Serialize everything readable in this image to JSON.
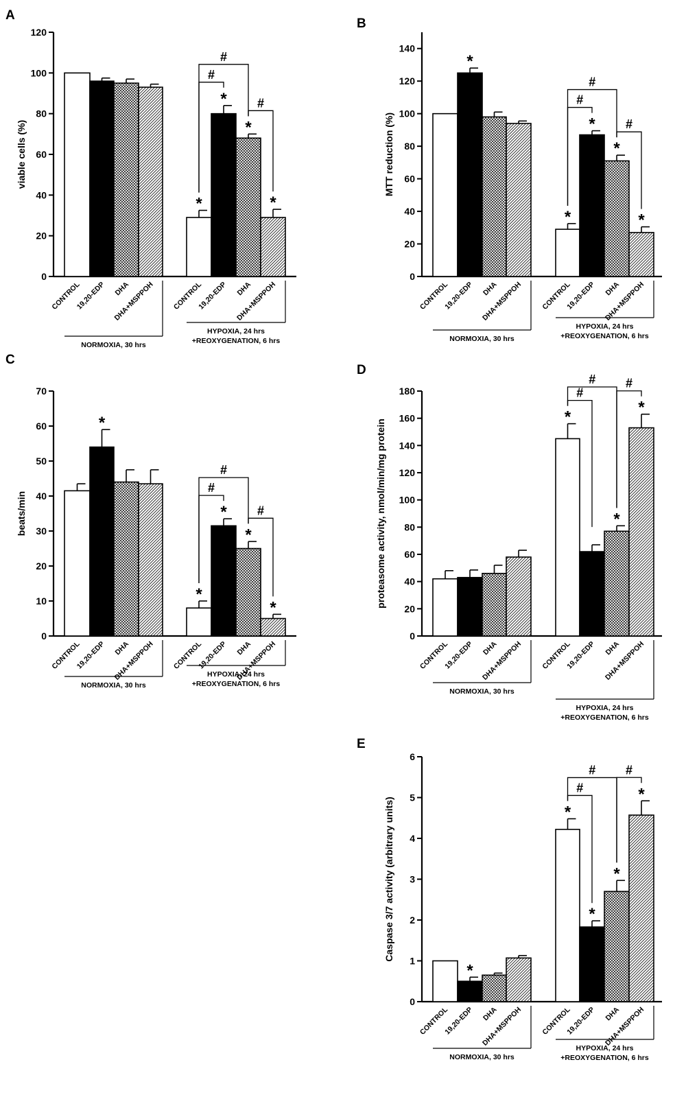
{
  "figure": {
    "fill_styles": [
      "open",
      "solid",
      "crosshatch",
      "diagonal"
    ],
    "colors": {
      "ink": "#000000",
      "open": "#ffffff",
      "solid": "#000000"
    }
  },
  "chart_data": [
    {
      "panel": "A",
      "type": "bar",
      "ylabel": "viable cells (%)",
      "ylim": [
        0,
        120
      ],
      "yticks": [
        0,
        20,
        40,
        60,
        80,
        100,
        120
      ],
      "categories": [
        "CONTROL",
        "19,20-EDP",
        "DHA",
        "DHA+MSPPOH"
      ],
      "groups": [
        "NORMOXIA, 30 hrs",
        "HYPOXIA, 24 hrs\n+REOXYGENATION, 6 hrs"
      ],
      "series": [
        {
          "name": "NORMOXIA, 30 hrs",
          "values": [
            100,
            96,
            95,
            93
          ],
          "errors": [
            0,
            1.5,
            2,
            1.5
          ]
        },
        {
          "name": "HYPOXIA, 24 hrs +REOXYGENATION, 6 hrs",
          "values": [
            29,
            80,
            68,
            29
          ],
          "errors": [
            3.5,
            4,
            2,
            4
          ]
        }
      ],
      "stars": [
        [
          false,
          false,
          false,
          false
        ],
        [
          true,
          true,
          true,
          true
        ]
      ],
      "brackets": [
        {
          "from": 0,
          "to": 2,
          "group": 1,
          "label": "#"
        },
        {
          "from": 0,
          "to": 1,
          "group": 1,
          "label": "#"
        },
        {
          "from": 2,
          "to": 3,
          "group": 1,
          "label": "#"
        }
      ]
    },
    {
      "panel": "B",
      "type": "bar",
      "ylabel": "MTT reduction (%)",
      "ylim": [
        0,
        150
      ],
      "yticks": [
        0,
        20,
        40,
        60,
        80,
        100,
        120,
        140
      ],
      "categories": [
        "CONTROL",
        "19,20-EDP",
        "DHA",
        "DHA+MSPPOH"
      ],
      "groups": [
        "NORMOXIA, 30 hrs",
        "HYPOXIA, 24 hrs\n+REOXYGENATION, 6 hrs"
      ],
      "series": [
        {
          "name": "NORMOXIA, 30 hrs",
          "values": [
            100,
            125,
            98,
            94
          ],
          "errors": [
            0,
            3,
            3,
            1.5
          ]
        },
        {
          "name": "HYPOXIA, 24 hrs +REOXYGENATION, 6 hrs",
          "values": [
            29,
            87,
            71,
            27
          ],
          "errors": [
            3.5,
            2.5,
            3.5,
            3.5
          ]
        }
      ],
      "stars": [
        [
          false,
          true,
          false,
          false
        ],
        [
          true,
          true,
          true,
          true
        ]
      ],
      "brackets": [
        {
          "from": 0,
          "to": 2,
          "group": 1,
          "label": "#"
        },
        {
          "from": 0,
          "to": 1,
          "group": 1,
          "label": "#"
        },
        {
          "from": 2,
          "to": 3,
          "group": 1,
          "label": "#"
        }
      ]
    },
    {
      "panel": "C",
      "type": "bar",
      "ylabel": "beats/min",
      "ylim": [
        0,
        70
      ],
      "yticks": [
        0,
        10,
        20,
        30,
        40,
        50,
        60,
        70
      ],
      "categories": [
        "CONTROL",
        "19,20-EDP",
        "DHA",
        "DHA+MSPPOH"
      ],
      "groups": [
        "NORMOXIA, 30 hrs",
        "HYPOXIA, 24 hrs\n+REOXYGENATION, 6 hrs"
      ],
      "series": [
        {
          "name": "NORMOXIA, 30 hrs",
          "values": [
            41.5,
            54,
            44,
            43.5
          ],
          "errors": [
            2,
            5,
            3.5,
            4
          ]
        },
        {
          "name": "HYPOXIA, 24 hrs +REOXYGENATION, 6 hrs",
          "values": [
            8,
            31.5,
            25,
            5
          ],
          "errors": [
            2,
            2,
            2,
            1.2
          ]
        }
      ],
      "stars": [
        [
          false,
          true,
          false,
          false
        ],
        [
          true,
          true,
          true,
          true
        ]
      ],
      "brackets": [
        {
          "from": 0,
          "to": 2,
          "group": 1,
          "label": "#"
        },
        {
          "from": 0,
          "to": 1,
          "group": 1,
          "label": "#"
        },
        {
          "from": 2,
          "to": 3,
          "group": 1,
          "label": "#"
        }
      ]
    },
    {
      "panel": "D",
      "type": "bar",
      "ylabel": "proteasome activity, nmol/min/mg protein",
      "ylim": [
        0,
        180
      ],
      "yticks": [
        0,
        20,
        40,
        60,
        80,
        100,
        120,
        140,
        160,
        180
      ],
      "categories": [
        "CONTROL",
        "19,20-EDP",
        "DHA",
        "DHA+MSPPOH"
      ],
      "groups": [
        "NORMOXIA, 30 hrs",
        "HYPOXIA, 24 hrs\n+REOXYGENATION, 6 hrs"
      ],
      "series": [
        {
          "name": "NORMOXIA, 30 hrs",
          "values": [
            42,
            43,
            46,
            58
          ],
          "errors": [
            6,
            5.5,
            6,
            5
          ]
        },
        {
          "name": "HYPOXIA, 24 hrs +REOXYGENATION, 6 hrs",
          "values": [
            145,
            62,
            77,
            153
          ],
          "errors": [
            11,
            5,
            4,
            10
          ]
        }
      ],
      "stars": [
        [
          false,
          false,
          false,
          false
        ],
        [
          true,
          false,
          true,
          true
        ]
      ],
      "brackets": [
        {
          "from": 0,
          "to": 2,
          "group": 1,
          "label": "#"
        },
        {
          "from": 0,
          "to": 1,
          "group": 1,
          "label": "#"
        },
        {
          "from": 2,
          "to": 3,
          "group": 1,
          "label": "#"
        }
      ]
    },
    {
      "panel": "E",
      "type": "bar",
      "ylabel": "Caspase 3/7 activity (arbitrary units)",
      "ylim": [
        0,
        6
      ],
      "yticks": [
        0,
        1,
        2,
        3,
        4,
        5,
        6
      ],
      "categories": [
        "CONTROL",
        "19,20-EDP",
        "DHA",
        "DHA+MSPPOH"
      ],
      "groups": [
        "NORMOXIA, 30 hrs",
        "HYPOXIA, 24 hrs\n+REOXYGENATION, 6 hrs"
      ],
      "series": [
        {
          "name": "NORMOXIA, 30 hrs",
          "values": [
            1.0,
            0.5,
            0.65,
            1.07
          ],
          "errors": [
            0,
            0.1,
            0.05,
            0.06
          ]
        },
        {
          "name": "HYPOXIA, 24 hrs +REOXYGENATION, 6 hrs",
          "values": [
            4.22,
            1.83,
            2.7,
            4.57
          ],
          "errors": [
            0.26,
            0.15,
            0.27,
            0.35
          ]
        }
      ],
      "stars": [
        [
          false,
          true,
          false,
          false
        ],
        [
          true,
          true,
          true,
          true
        ]
      ],
      "brackets": [
        {
          "from": 0,
          "to": 2,
          "group": 1,
          "label": "#"
        },
        {
          "from": 0,
          "to": 1,
          "group": 1,
          "label": "#"
        },
        {
          "from": 2,
          "to": 3,
          "group": 1,
          "label": "#"
        }
      ]
    }
  ]
}
